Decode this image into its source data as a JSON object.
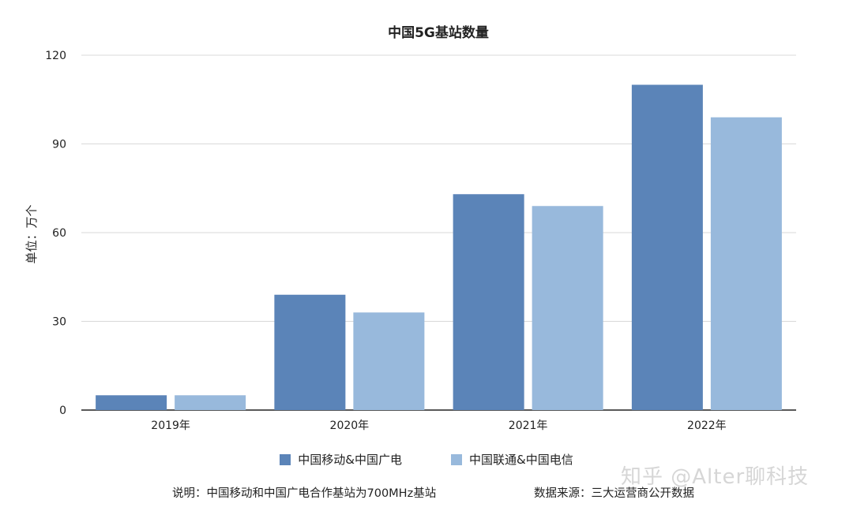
{
  "chart_data": {
    "type": "bar",
    "title": "中国5G基站数量",
    "ylabel": "单位：万个",
    "xlabel": "",
    "categories": [
      "2019年",
      "2020年",
      "2021年",
      "2022年"
    ],
    "series": [
      {
        "name": "中国移动&中国广电",
        "color": "#5b84b8",
        "values": [
          5,
          39,
          73,
          110
        ]
      },
      {
        "name": "中国联通&中国电信",
        "color": "#98b9dc",
        "values": [
          5,
          33,
          69,
          99
        ]
      }
    ],
    "ylim": [
      0,
      120
    ],
    "yticks": [
      0,
      30,
      60,
      90,
      120
    ],
    "grid": true,
    "legend_position": "bottom"
  },
  "footnotes": {
    "left": "说明：中国移动和中国广电合作基站为700MHz基站",
    "right": "数据来源：三大运营商公开数据"
  },
  "watermark": "知乎 @Alter聊科技"
}
